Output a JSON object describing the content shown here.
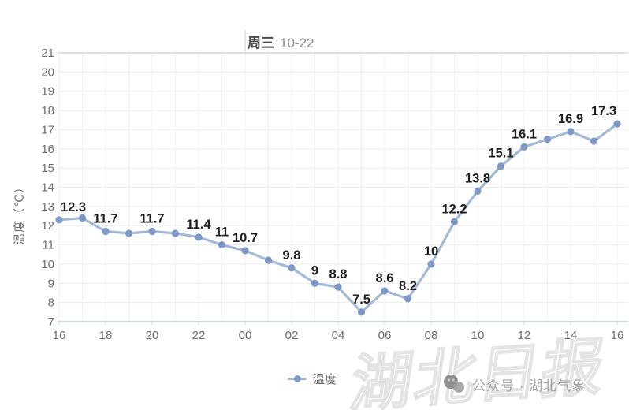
{
  "chart": {
    "title_day": "周三",
    "title_date": "10-22",
    "ylabel": "温度（℃）"
  },
  "legend": {
    "label": "温度"
  },
  "watermarks": {
    "brand": "湖北日报",
    "account": "公众号 · 湖北气象"
  },
  "chart_data": {
    "type": "line",
    "title": "周三 10-22",
    "xlabel": "",
    "ylabel": "温度（℃）",
    "categories": [
      "16",
      "17",
      "18",
      "19",
      "20",
      "21",
      "22",
      "23",
      "00",
      "01",
      "02",
      "03",
      "04",
      "05",
      "06",
      "07",
      "08",
      "09",
      "10",
      "11",
      "12",
      "13",
      "14",
      "15",
      "16"
    ],
    "series": [
      {
        "name": "温度",
        "values": [
          12.3,
          12.4,
          11.7,
          11.6,
          11.7,
          11.6,
          11.4,
          11.0,
          10.7,
          10.2,
          9.8,
          9.0,
          8.8,
          7.5,
          8.6,
          8.2,
          10.0,
          12.2,
          13.8,
          15.1,
          16.1,
          16.5,
          16.9,
          16.4,
          17.3
        ],
        "point_labels": [
          "12.3",
          "",
          "11.7",
          "",
          "11.7",
          "",
          "11.4",
          "11",
          "10.7",
          "",
          "9.8",
          "9",
          "8.8",
          "7.5",
          "8.6",
          "8.2",
          "10",
          "12.2",
          "13.8",
          "15.1",
          "16.1",
          "",
          "16.9",
          "",
          "17.3"
        ]
      }
    ],
    "x_tick_label_indices": [
      0,
      2,
      4,
      6,
      8,
      10,
      12,
      14,
      16,
      18,
      20,
      22,
      24
    ],
    "ylim": [
      7,
      21
    ],
    "y_tick_step": 1,
    "grid": true,
    "legend_position": "bottom",
    "day_divider_index": 8,
    "colors": {
      "line": "#a4b9d6",
      "marker": "#7e99c5",
      "data_label": "#1f1f1f",
      "axis_text": "#6e6e6e",
      "grid_h": "#ebebeb",
      "grid_v": "#f1f1f1",
      "axis_line": "#c9d8e2",
      "top_border": "#d6d6d6",
      "day_divider": "#dddddd"
    }
  }
}
